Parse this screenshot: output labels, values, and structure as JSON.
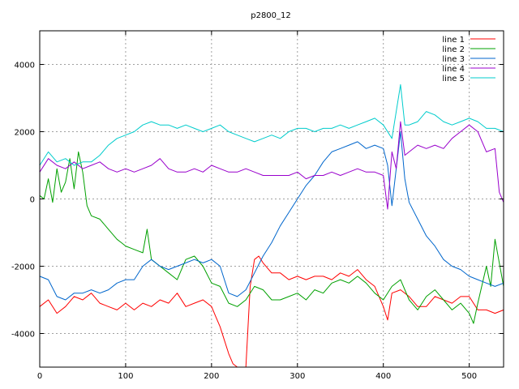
{
  "chart_data": {
    "type": "line",
    "title": "p2800_12",
    "xlabel": "",
    "ylabel": "",
    "xlim": [
      0,
      540
    ],
    "ylim": [
      -5000,
      5000
    ],
    "xticks": [
      0,
      100,
      200,
      300,
      400,
      500
    ],
    "yticks": [
      -4000,
      -2000,
      0,
      2000,
      4000
    ],
    "grid": true,
    "legend_position": "top-right",
    "series": [
      {
        "name": "line 1",
        "color": "#ff0000",
        "x": [
          0,
          10,
          20,
          30,
          40,
          50,
          60,
          70,
          80,
          90,
          100,
          110,
          120,
          130,
          140,
          150,
          160,
          170,
          180,
          190,
          200,
          205,
          210,
          215,
          220,
          225,
          230,
          235,
          240,
          245,
          250,
          255,
          260,
          270,
          280,
          290,
          300,
          310,
          320,
          330,
          340,
          350,
          360,
          370,
          380,
          390,
          400,
          405,
          410,
          420,
          430,
          440,
          450,
          460,
          470,
          480,
          490,
          500,
          510,
          520,
          530,
          540
        ],
        "values": [
          -3200,
          -3000,
          -3400,
          -3200,
          -2900,
          -3000,
          -2800,
          -3100,
          -3200,
          -3300,
          -3100,
          -3300,
          -3100,
          -3200,
          -3000,
          -3100,
          -2800,
          -3200,
          -3100,
          -3000,
          -3200,
          -3500,
          -3800,
          -4200,
          -4600,
          -4900,
          -5000,
          -5000,
          -5000,
          -2600,
          -1800,
          -1700,
          -1900,
          -2200,
          -2200,
          -2400,
          -2300,
          -2400,
          -2300,
          -2300,
          -2400,
          -2200,
          -2300,
          -2100,
          -2400,
          -2600,
          -3200,
          -3600,
          -2800,
          -2700,
          -2900,
          -3200,
          -3200,
          -2900,
          -3000,
          -3100,
          -2900,
          -2900,
          -3300,
          -3300,
          -3400,
          -3300
        ]
      },
      {
        "name": "line 2",
        "color": "#00a000",
        "x": [
          0,
          5,
          10,
          15,
          20,
          25,
          30,
          35,
          40,
          45,
          50,
          55,
          60,
          70,
          80,
          90,
          95,
          100,
          110,
          120,
          125,
          130,
          140,
          150,
          160,
          170,
          180,
          190,
          200,
          210,
          220,
          230,
          240,
          250,
          260,
          270,
          280,
          290,
          300,
          310,
          320,
          330,
          340,
          350,
          360,
          370,
          380,
          390,
          400,
          410,
          420,
          430,
          440,
          450,
          460,
          470,
          480,
          490,
          500,
          505,
          510,
          520,
          525,
          530,
          540
        ],
        "values": [
          100,
          0,
          600,
          -100,
          900,
          200,
          500,
          1200,
          300,
          1400,
          800,
          -200,
          -500,
          -600,
          -900,
          -1200,
          -1300,
          -1400,
          -1500,
          -1600,
          -900,
          -1800,
          -2000,
          -2200,
          -2400,
          -1800,
          -1700,
          -2000,
          -2500,
          -2600,
          -3100,
          -3200,
          -3000,
          -2600,
          -2700,
          -3000,
          -3000,
          -2900,
          -2800,
          -3000,
          -2700,
          -2800,
          -2500,
          -2400,
          -2500,
          -2300,
          -2500,
          -2800,
          -3000,
          -2600,
          -2400,
          -3000,
          -3300,
          -2900,
          -2700,
          -3000,
          -3300,
          -3100,
          -3400,
          -3700,
          -3100,
          -2000,
          -2600,
          -1200,
          -2600
        ]
      },
      {
        "name": "line 3",
        "color": "#0066cc",
        "x": [
          0,
          10,
          20,
          30,
          40,
          50,
          60,
          70,
          80,
          90,
          100,
          110,
          120,
          130,
          140,
          150,
          160,
          170,
          180,
          190,
          200,
          210,
          220,
          230,
          240,
          250,
          260,
          270,
          280,
          290,
          300,
          310,
          320,
          330,
          340,
          350,
          360,
          370,
          380,
          390,
          400,
          405,
          410,
          415,
          420,
          425,
          430,
          440,
          450,
          460,
          470,
          480,
          490,
          500,
          510,
          520,
          530,
          540
        ],
        "values": [
          -2300,
          -2400,
          -2900,
          -3000,
          -2800,
          -2800,
          -2700,
          -2800,
          -2700,
          -2500,
          -2400,
          -2400,
          -2000,
          -1800,
          -2000,
          -2100,
          -2000,
          -1900,
          -1800,
          -1900,
          -1800,
          -2000,
          -2800,
          -2900,
          -2700,
          -2200,
          -1700,
          -1300,
          -800,
          -400,
          0,
          400,
          700,
          1100,
          1400,
          1500,
          1600,
          1700,
          1500,
          1600,
          1500,
          1000,
          -200,
          900,
          2000,
          600,
          -100,
          -600,
          -1100,
          -1400,
          -1800,
          -2000,
          -2100,
          -2300,
          -2400,
          -2500,
          -2600,
          -2500
        ]
      },
      {
        "name": "line 4",
        "color": "#9900cc",
        "x": [
          0,
          10,
          20,
          30,
          40,
          50,
          60,
          70,
          80,
          90,
          100,
          110,
          120,
          130,
          140,
          150,
          160,
          170,
          180,
          190,
          200,
          210,
          220,
          230,
          240,
          250,
          260,
          270,
          280,
          290,
          300,
          310,
          320,
          330,
          340,
          350,
          360,
          370,
          380,
          390,
          400,
          405,
          410,
          415,
          420,
          425,
          430,
          440,
          450,
          460,
          470,
          480,
          490,
          500,
          510,
          520,
          530,
          535,
          540
        ],
        "values": [
          800,
          1200,
          1000,
          900,
          1100,
          900,
          1000,
          1100,
          900,
          800,
          900,
          800,
          900,
          1000,
          1200,
          900,
          800,
          800,
          900,
          800,
          1000,
          900,
          800,
          800,
          900,
          800,
          700,
          700,
          700,
          700,
          800,
          600,
          700,
          700,
          800,
          700,
          800,
          900,
          800,
          800,
          700,
          -300,
          1400,
          900,
          2300,
          1300,
          1400,
          1600,
          1500,
          1600,
          1500,
          1800,
          2000,
          2200,
          2000,
          1400,
          1500,
          200,
          -100
        ]
      },
      {
        "name": "line 5",
        "color": "#00cccc",
        "x": [
          0,
          10,
          20,
          30,
          40,
          50,
          60,
          70,
          80,
          90,
          100,
          110,
          120,
          130,
          140,
          150,
          160,
          170,
          180,
          190,
          200,
          210,
          220,
          230,
          240,
          250,
          260,
          270,
          280,
          290,
          300,
          310,
          320,
          330,
          340,
          350,
          360,
          370,
          380,
          390,
          400,
          410,
          415,
          420,
          425,
          430,
          440,
          450,
          460,
          470,
          480,
          490,
          500,
          510,
          520,
          530,
          540
        ],
        "values": [
          1000,
          1400,
          1100,
          1200,
          1000,
          1100,
          1100,
          1300,
          1600,
          1800,
          1900,
          2000,
          2200,
          2300,
          2200,
          2200,
          2100,
          2200,
          2100,
          2000,
          2100,
          2200,
          2000,
          1900,
          1800,
          1700,
          1800,
          1900,
          1800,
          2000,
          2100,
          2100,
          2000,
          2100,
          2100,
          2200,
          2100,
          2200,
          2300,
          2400,
          2200,
          1800,
          2600,
          3400,
          2200,
          2200,
          2300,
          2600,
          2500,
          2300,
          2200,
          2300,
          2400,
          2300,
          2100,
          2100,
          2000
        ]
      }
    ]
  }
}
